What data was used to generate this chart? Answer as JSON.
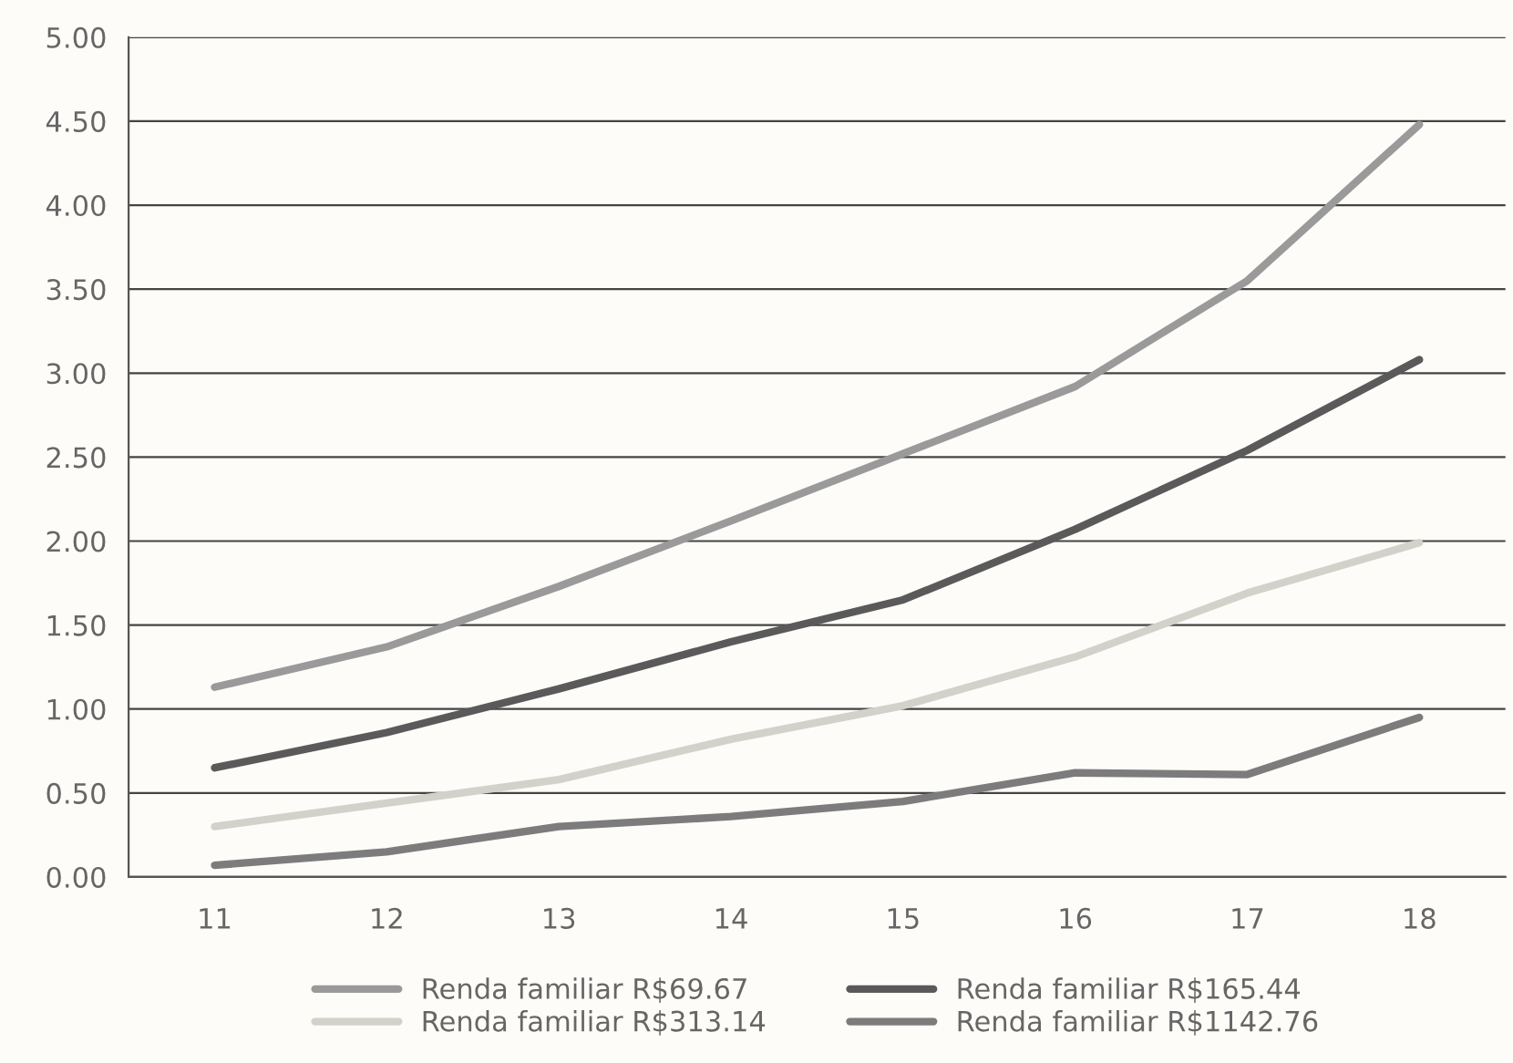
{
  "chart_data": {
    "type": "line",
    "categories": [
      "11",
      "12",
      "13",
      "14",
      "15",
      "16",
      "17",
      "18"
    ],
    "series": [
      {
        "name": "Renda familiar R$69.67",
        "color": "#9a9a9a",
        "values": [
          1.13,
          1.37,
          1.73,
          2.12,
          2.52,
          2.92,
          3.55,
          4.48
        ]
      },
      {
        "name": "Renda familiar R$165.44",
        "color": "#5a5a5a",
        "values": [
          0.65,
          0.86,
          1.12,
          1.4,
          1.65,
          2.07,
          2.54,
          3.08
        ]
      },
      {
        "name": "Renda familiar R$313.14",
        "color": "#d2d2ca",
        "values": [
          0.3,
          0.44,
          0.58,
          0.82,
          1.02,
          1.31,
          1.69,
          1.99
        ]
      },
      {
        "name": "Renda familiar R$1142.76",
        "color": "#7c7c7c",
        "values": [
          0.07,
          0.15,
          0.3,
          0.36,
          0.45,
          0.62,
          0.61,
          0.95
        ]
      }
    ],
    "ylim": [
      0,
      5
    ],
    "yticks": [
      {
        "value": 0,
        "label": "0.00"
      },
      {
        "value": 0.5,
        "label": "0.50"
      },
      {
        "value": 1,
        "label": "1.00"
      },
      {
        "value": 1.5,
        "label": "1.50"
      },
      {
        "value": 2,
        "label": "2.00"
      },
      {
        "value": 2.5,
        "label": "2.50"
      },
      {
        "value": 3,
        "label": "3.00"
      },
      {
        "value": 3.5,
        "label": "3.50"
      },
      {
        "value": 4,
        "label": "4.00"
      },
      {
        "value": 4.5,
        "label": "4.50"
      },
      {
        "value": 5,
        "label": "5.00"
      }
    ],
    "grid": "y",
    "legend": "bottom",
    "marker": "none",
    "line_style": "solid"
  }
}
